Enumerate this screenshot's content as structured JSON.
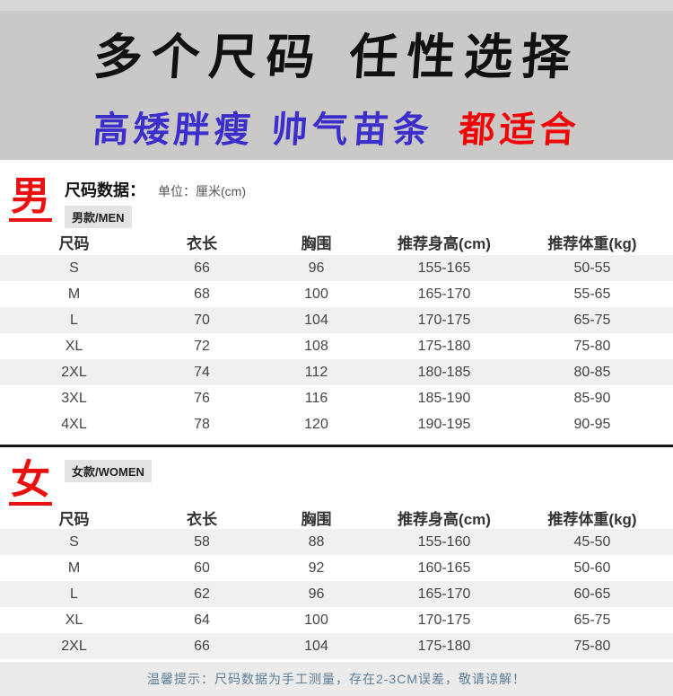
{
  "banner": {
    "line1": "多个尺码 任性选择",
    "line2_blue": "高矮胖瘦 帅气苗条",
    "line2_red": "都适合"
  },
  "men": {
    "symbol": "男",
    "data_label": "尺码数据：",
    "unit_label": "单位：厘米(cm)",
    "tag": "男款/MEN",
    "headers": [
      "尺码",
      "衣长",
      "胸围",
      "推荐身高(cm)",
      "推荐体重(kg)"
    ],
    "rows": [
      {
        "size": "S",
        "length": "66",
        "chest": "96",
        "height": "155-165",
        "weight": "50-55",
        "shaded": true
      },
      {
        "size": "M",
        "length": "68",
        "chest": "100",
        "height": "165-170",
        "weight": "55-65",
        "shaded": false
      },
      {
        "size": "L",
        "length": "70",
        "chest": "104",
        "height": "170-175",
        "weight": "65-75",
        "shaded": true
      },
      {
        "size": "XL",
        "length": "72",
        "chest": "108",
        "height": "175-180",
        "weight": "75-80",
        "shaded": false
      },
      {
        "size": "2XL",
        "length": "74",
        "chest": "112",
        "height": "180-185",
        "weight": "80-85",
        "shaded": true
      },
      {
        "size": "3XL",
        "length": "76",
        "chest": "116",
        "height": "185-190",
        "weight": "85-90",
        "shaded": false
      },
      {
        "size": "4XL",
        "length": "78",
        "chest": "120",
        "height": "190-195",
        "weight": "90-95",
        "shaded": false
      }
    ]
  },
  "women": {
    "symbol": "女",
    "tag": "女款/WOMEN",
    "headers": [
      "尺码",
      "衣长",
      "胸围",
      "推荐身高(cm)",
      "推荐体重(kg)"
    ],
    "rows": [
      {
        "size": "S",
        "length": "58",
        "chest": "88",
        "height": "155-160",
        "weight": "45-50",
        "shaded": true
      },
      {
        "size": "M",
        "length": "60",
        "chest": "92",
        "height": "160-165",
        "weight": "50-60",
        "shaded": false
      },
      {
        "size": "L",
        "length": "62",
        "chest": "96",
        "height": "165-170",
        "weight": "60-65",
        "shaded": true
      },
      {
        "size": "XL",
        "length": "64",
        "chest": "100",
        "height": "170-175",
        "weight": "65-75",
        "shaded": false
      },
      {
        "size": "2XL",
        "length": "66",
        "chest": "104",
        "height": "175-180",
        "weight": "75-80",
        "shaded": true
      }
    ]
  },
  "footer": {
    "note": "温馨提示：尺码数据为手工测量，存在2-3CM误差，敬请谅解！"
  },
  "colors": {
    "banner_bg": "#cac9c7",
    "banner_black": "#111111",
    "banner_blue": "#3c2ecb",
    "banner_red": "#ee0606",
    "section_red": "#e8110f",
    "row_shade": "#f0f0f0",
    "tag_bg": "#e3e3e3",
    "divider": "#161616",
    "footer_bg": "#ebebeb",
    "footer_text": "#5d7d99"
  },
  "chart_data": [
    {
      "type": "table",
      "title": "男款/MEN 尺码数据 (单位：厘米cm)",
      "columns": [
        "尺码",
        "衣长",
        "胸围",
        "推荐身高(cm)",
        "推荐体重(kg)"
      ],
      "rows": [
        [
          "S",
          66,
          96,
          "155-165",
          "50-55"
        ],
        [
          "M",
          68,
          100,
          "165-170",
          "55-65"
        ],
        [
          "L",
          70,
          104,
          "170-175",
          "65-75"
        ],
        [
          "XL",
          72,
          108,
          "175-180",
          "75-80"
        ],
        [
          "2XL",
          74,
          112,
          "180-185",
          "80-85"
        ],
        [
          "3XL",
          76,
          116,
          "185-190",
          "85-90"
        ],
        [
          "4XL",
          78,
          120,
          "190-195",
          "90-95"
        ]
      ]
    },
    {
      "type": "table",
      "title": "女款/WOMEN 尺码数据 (单位：厘米cm)",
      "columns": [
        "尺码",
        "衣长",
        "胸围",
        "推荐身高(cm)",
        "推荐体重(kg)"
      ],
      "rows": [
        [
          "S",
          58,
          88,
          "155-160",
          "45-50"
        ],
        [
          "M",
          60,
          92,
          "160-165",
          "50-60"
        ],
        [
          "L",
          62,
          96,
          "165-170",
          "60-65"
        ],
        [
          "XL",
          64,
          100,
          "170-175",
          "65-75"
        ],
        [
          "2XL",
          66,
          104,
          "175-180",
          "75-80"
        ]
      ]
    }
  ]
}
